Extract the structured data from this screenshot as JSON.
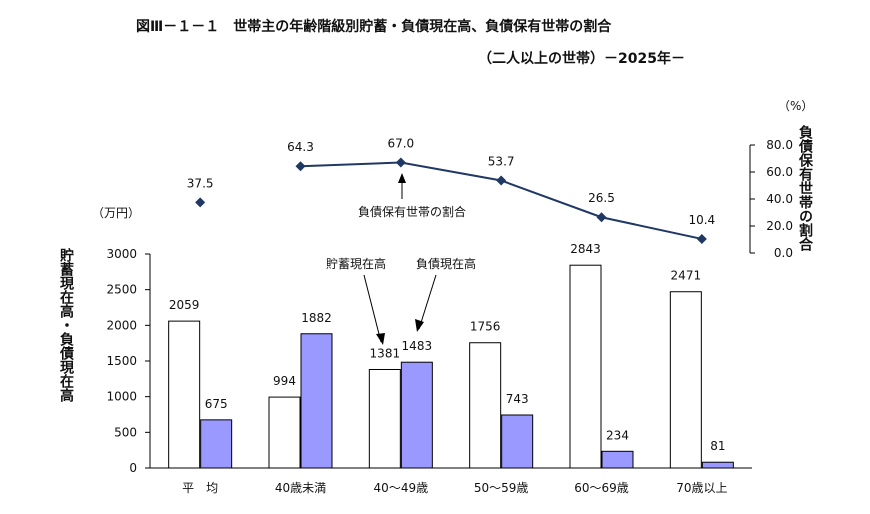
{
  "chart_data": {
    "type": "bar",
    "title": "図Ⅲ－１－１　世帯主の年齢階級別貯蓄・負債現在高、負債保有世帯の割合",
    "subtitle": "（二人以上の世帯）－2025年－",
    "categories": [
      "平　均",
      "40歳未満",
      "40～49歳",
      "50～59歳",
      "60～69歳",
      "70歳以上"
    ],
    "series": [
      {
        "name": "貯蓄現在高",
        "values": [
          2059,
          994,
          1381,
          1756,
          2843,
          2471
        ],
        "color": "#ffffff"
      },
      {
        "name": "負債現在高",
        "values": [
          675,
          1882,
          1483,
          743,
          234,
          81
        ],
        "color": "#9999ff"
      }
    ],
    "line": {
      "name": "負債保有世帯の割合",
      "values": [
        37.5,
        64.3,
        67.0,
        53.7,
        26.5,
        10.4
      ],
      "color": "#1f3864"
    },
    "ylabel": "貯蓄現在高・負債現在高",
    "y_unit": "（万円）",
    "ylim": [
      0,
      3000
    ],
    "yticks": [
      "3000",
      "2500",
      "2000",
      "1500",
      "1000",
      "500",
      "0"
    ],
    "y2label": "負債保有世帯の割合",
    "y2_unit": "（%）",
    "y2lim": [
      0,
      80
    ],
    "y2ticks": [
      "80.0",
      "60.0",
      "40.0",
      "20.0",
      "0.0"
    ],
    "annotations": {
      "savings": "貯蓄現在高",
      "debt": "負債現在高",
      "ratio": "負債保有世帯の割合"
    }
  }
}
